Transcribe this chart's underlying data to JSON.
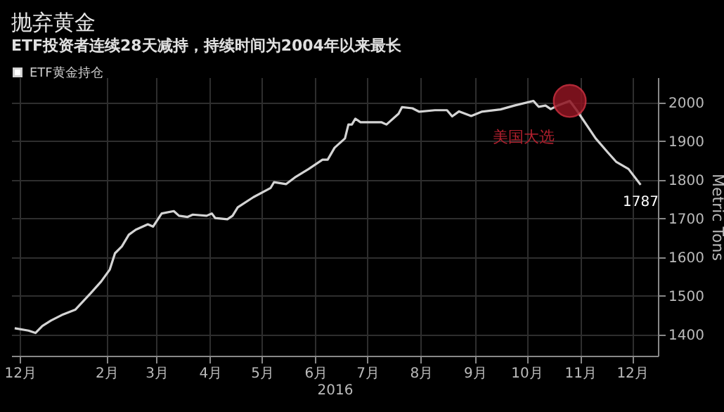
{
  "chart_data": {
    "type": "line",
    "title": "抛弃黄金",
    "subtitle": "ETF投资者连续28天减持，持续时间为2004年以来最长",
    "xlabel": "2016",
    "ylabel": "Metric Tons",
    "legend": "top left",
    "grid": true,
    "xlim": [
      "2015-12-22",
      "2016-12-30"
    ],
    "ylim": [
      1345,
      2065
    ],
    "yticks": [
      1400,
      1500,
      1600,
      1700,
      1800,
      1900,
      2000
    ],
    "xticks": [
      {
        "value": "2015-12-27",
        "label": "12月"
      },
      {
        "value": "2016-02-15",
        "label": "2月"
      },
      {
        "value": "2016-03-15",
        "label": "3月"
      },
      {
        "value": "2016-04-15",
        "label": "4月"
      },
      {
        "value": "2016-05-15",
        "label": "5月"
      },
      {
        "value": "2016-06-15",
        "label": "6月"
      },
      {
        "value": "2016-07-15",
        "label": "7月"
      },
      {
        "value": "2016-08-15",
        "label": "8月"
      },
      {
        "value": "2016-09-15",
        "label": "9月"
      },
      {
        "value": "2016-10-15",
        "label": "10月"
      },
      {
        "value": "2016-11-15",
        "label": "11月"
      },
      {
        "value": "2016-12-15",
        "label": "12月"
      }
    ],
    "x": [
      "2015-12-24",
      "2016-01-01",
      "2016-01-05",
      "2016-01-09",
      "2016-01-14",
      "2016-01-21",
      "2016-01-28",
      "2016-02-06",
      "2016-02-12",
      "2016-02-17",
      "2016-02-20",
      "2016-02-24",
      "2016-02-28",
      "2016-03-03",
      "2016-03-10",
      "2016-03-13",
      "2016-03-18",
      "2016-03-25",
      "2016-03-28",
      "2016-04-02",
      "2016-04-05",
      "2016-04-13",
      "2016-04-16",
      "2016-04-18",
      "2016-04-25",
      "2016-04-28",
      "2016-05-01",
      "2016-05-10",
      "2016-05-20",
      "2016-05-22",
      "2016-05-29",
      "2016-06-03",
      "2016-06-11",
      "2016-06-19",
      "2016-06-22",
      "2016-06-26",
      "2016-07-02",
      "2016-07-04",
      "2016-07-06",
      "2016-07-08",
      "2016-07-11",
      "2016-07-14",
      "2016-07-23",
      "2016-07-26",
      "2016-08-02",
      "2016-08-04",
      "2016-08-10",
      "2016-08-14",
      "2016-08-23",
      "2016-08-30",
      "2016-09-02",
      "2016-09-06",
      "2016-09-13",
      "2016-09-19",
      "2016-09-30",
      "2016-10-08",
      "2016-10-19",
      "2016-10-22",
      "2016-10-26",
      "2016-10-29",
      "2016-11-02",
      "2016-11-09",
      "2016-11-13",
      "2016-11-24",
      "2016-12-01",
      "2016-12-06",
      "2016-12-13",
      "2016-12-20"
    ],
    "series": [
      {
        "name": "ETF黄金持仓",
        "color": "#d4d4d4",
        "values": [
          1416,
          1410,
          1404,
          1422,
          1436,
          1452,
          1464,
          1507,
          1537,
          1568,
          1610,
          1628,
          1658,
          1671,
          1685,
          1679,
          1713,
          1719,
          1707,
          1704,
          1710,
          1707,
          1713,
          1701,
          1698,
          1707,
          1729,
          1755,
          1779,
          1794,
          1789,
          1806,
          1828,
          1852,
          1852,
          1883,
          1907,
          1943,
          1943,
          1958,
          1949,
          1949,
          1949,
          1943,
          1971,
          1988,
          1985,
          1976,
          1980,
          1980,
          1964,
          1977,
          1965,
          1976,
          1982,
          1992,
          2004,
          1989,
          1992,
          1983,
          1992,
          2004,
          1980,
          1907,
          1871,
          1846,
          1828,
          1787
        ],
        "value_labels": [
          null,
          null,
          null,
          null,
          null,
          null,
          null,
          null,
          null,
          null,
          null,
          null,
          null,
          null,
          null,
          null,
          null,
          null,
          null,
          null,
          null,
          null,
          null,
          null,
          null,
          null,
          null,
          null,
          null,
          null,
          null,
          null,
          null,
          null,
          null,
          null,
          null,
          null,
          null,
          null,
          null,
          null,
          null,
          null,
          null,
          null,
          null,
          null,
          null,
          null,
          null,
          null,
          null,
          null,
          null,
          null,
          null,
          null,
          null,
          null,
          null,
          null,
          null,
          null,
          null,
          null,
          null,
          "1787"
        ]
      }
    ],
    "annotations": [
      {
        "text": "美国大选",
        "x": "2016-11-09",
        "y": 2004
      }
    ]
  }
}
